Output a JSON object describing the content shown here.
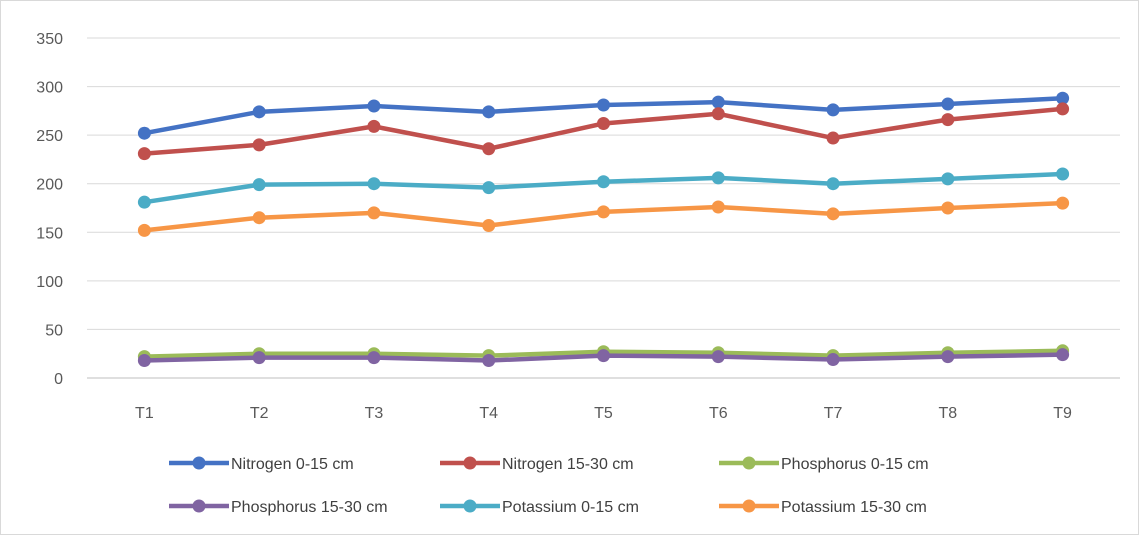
{
  "chart_data": {
    "type": "line",
    "categories": [
      "T1",
      "T2",
      "T3",
      "T4",
      "T5",
      "T6",
      "T7",
      "T8",
      "T9"
    ],
    "ylim": [
      0,
      350
    ],
    "yticks": [
      0,
      50,
      100,
      150,
      200,
      250,
      300,
      350
    ],
    "grid": true,
    "legend_position": "bottom",
    "series": [
      {
        "name": "Nitrogen 0-15 cm",
        "color": "#4472C4",
        "values": [
          252,
          274,
          280,
          274,
          281,
          284,
          276,
          282,
          288
        ]
      },
      {
        "name": "Nitrogen 15-30 cm",
        "color": "#C0504D",
        "values": [
          231,
          240,
          259,
          236,
          262,
          272,
          247,
          266,
          277
        ]
      },
      {
        "name": "Phosphorus 0-15 cm",
        "color": "#9BBB59",
        "values": [
          22,
          25,
          25,
          23,
          27,
          26,
          23,
          26,
          28
        ]
      },
      {
        "name": "Phosphorus 15-30 cm",
        "color": "#8064A2",
        "values": [
          18,
          21,
          21,
          18,
          23,
          22,
          19,
          22,
          24
        ]
      },
      {
        "name": "Potassium 0-15 cm",
        "color": "#4BACC6",
        "values": [
          181,
          199,
          200,
          196,
          202,
          206,
          200,
          205,
          210
        ]
      },
      {
        "name": "Potassium 15-30 cm",
        "color": "#F79646",
        "values": [
          152,
          165,
          170,
          157,
          171,
          176,
          169,
          175,
          180
        ]
      }
    ]
  }
}
